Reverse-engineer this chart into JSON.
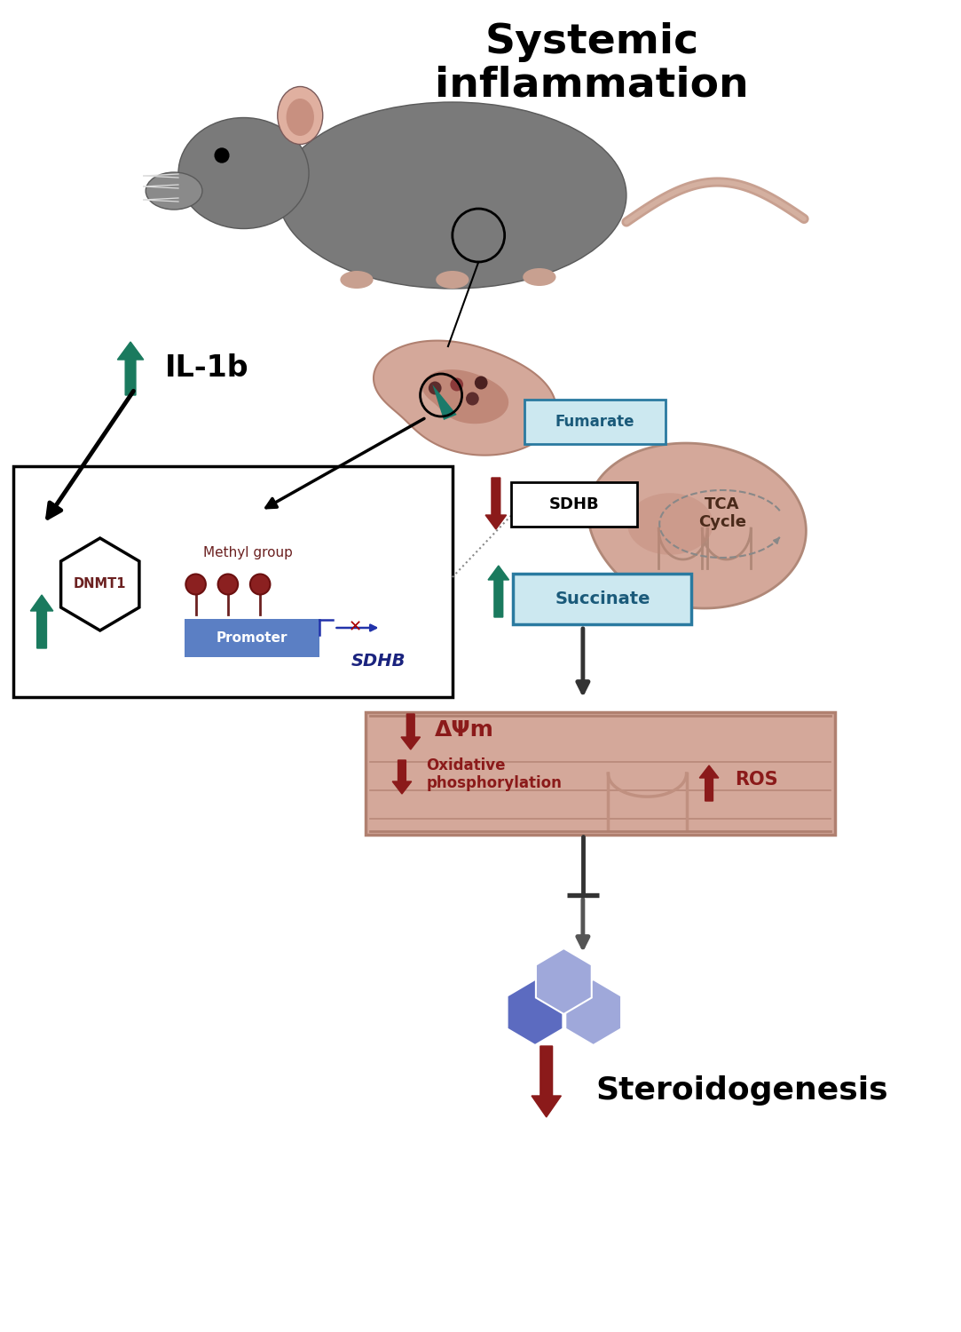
{
  "bg_color": "#ffffff",
  "colors": {
    "dark_green": "#1a7a5e",
    "dark_red": "#8b1a1a",
    "black": "#000000",
    "dark_blue": "#1a237e",
    "promoter_blue": "#5b7fc4",
    "dna_red": "#c0392b",
    "dna_blue": "#2980b9",
    "mito_fill": "#d4a89a",
    "mito_inner": "#c17f6e",
    "steroid_dark": "#5c6bc0",
    "steroid_light": "#9fa8da",
    "fumarate_bg": "#cce8f0",
    "fumarate_border": "#2a7aa0",
    "fumarate_text": "#1a5a7a"
  },
  "labels": {
    "title": "Systemic\ninflammation",
    "il1b": "IL-1b",
    "dnmt1": "DNMT1",
    "methyl_group": "Methyl group",
    "promoter": "Promoter",
    "sdhb_italic": "SDHB",
    "sdhb_box": "SDHB",
    "fumarate": "Fumarate",
    "succinate": "Succinate",
    "tca_cycle": "TCA\nCycle",
    "delta_psi": "ΔΨm",
    "oxphos": "Oxidative\nphosphorylation",
    "ros": "ROS",
    "steroidogenesis": "Steroidogenesis"
  }
}
